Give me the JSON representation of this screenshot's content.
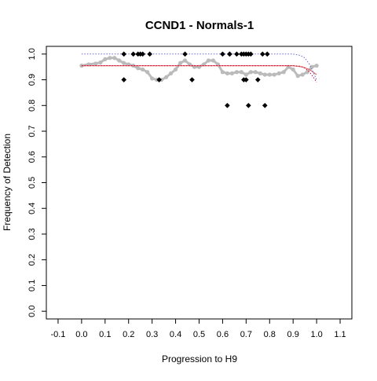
{
  "chart_data": {
    "type": "scatter",
    "title": "CCND1 - Normals-1",
    "xlabel": "Progression to H9",
    "ylabel": "Frequency of Detection",
    "xlim": [
      -0.15,
      1.15
    ],
    "ylim": [
      -0.03,
      1.03
    ],
    "x_ticks": [
      -0.1,
      0.0,
      0.1,
      0.2,
      0.3,
      0.4,
      0.5,
      0.6,
      0.7,
      0.8,
      0.9,
      1.0,
      1.1
    ],
    "x_tick_labels": [
      "-0.1",
      "0.0",
      "0.1",
      "0.2",
      "0.3",
      "0.4",
      "0.5",
      "0.6",
      "0.7",
      "0.8",
      "0.9",
      "1.0",
      "1.1"
    ],
    "y_ticks": [
      0.0,
      0.1,
      0.2,
      0.3,
      0.4,
      0.5,
      0.6,
      0.7,
      0.8,
      0.9,
      1.0
    ],
    "y_tick_labels": [
      "0.0",
      "0.1",
      "0.2",
      "0.3",
      "0.4",
      "0.5",
      "0.6",
      "0.7",
      "0.8",
      "0.9",
      "1.0"
    ],
    "grid": false,
    "colors": {
      "observed": "#000000",
      "smoothed": "#bbbbbb",
      "fit": "#e07070",
      "upper": "#6666dd",
      "lower": "#cc0033"
    },
    "series": [
      {
        "role": "observed",
        "style": "points",
        "x": [
          0.18,
          0.18,
          0.22,
          0.24,
          0.25,
          0.26,
          0.29,
          0.33,
          0.44,
          0.47,
          0.6,
          0.62,
          0.63,
          0.63,
          0.66,
          0.68,
          0.69,
          0.69,
          0.7,
          0.7,
          0.71,
          0.71,
          0.72,
          0.75,
          0.77,
          0.78,
          0.79
        ],
        "y": [
          1.0,
          0.9,
          1.0,
          1.0,
          1.0,
          1.0,
          1.0,
          0.9,
          1.0,
          0.9,
          1.0,
          0.8,
          1.0,
          1.0,
          1.0,
          1.0,
          0.9,
          1.0,
          0.9,
          1.0,
          0.8,
          1.0,
          1.0,
          0.9,
          1.0,
          0.8,
          1.0
        ]
      },
      {
        "role": "smoothed",
        "style": "dense-points",
        "x": [
          0.0,
          0.03,
          0.06,
          0.08,
          0.1,
          0.12,
          0.14,
          0.16,
          0.18,
          0.2,
          0.22,
          0.24,
          0.26,
          0.28,
          0.3,
          0.32,
          0.34,
          0.36,
          0.38,
          0.4,
          0.42,
          0.44,
          0.46,
          0.48,
          0.5,
          0.52,
          0.54,
          0.56,
          0.58,
          0.6,
          0.62,
          0.64,
          0.66,
          0.68,
          0.7,
          0.72,
          0.74,
          0.76,
          0.78,
          0.8,
          0.82,
          0.84,
          0.86,
          0.88,
          0.9,
          0.92,
          0.94,
          0.96,
          0.98,
          1.0
        ],
        "y": [
          0.955,
          0.96,
          0.963,
          0.967,
          0.98,
          0.985,
          0.985,
          0.975,
          0.965,
          0.96,
          0.955,
          0.945,
          0.94,
          0.93,
          0.905,
          0.9,
          0.9,
          0.91,
          0.925,
          0.94,
          0.965,
          0.975,
          0.96,
          0.95,
          0.95,
          0.96,
          0.975,
          0.975,
          0.96,
          0.93,
          0.925,
          0.925,
          0.93,
          0.93,
          0.92,
          0.93,
          0.93,
          0.925,
          0.92,
          0.92,
          0.92,
          0.925,
          0.93,
          0.95,
          0.94,
          0.915,
          0.92,
          0.93,
          0.95,
          0.955
        ]
      },
      {
        "role": "fit",
        "style": "line",
        "x": [
          0.0,
          0.2,
          0.4,
          0.6,
          0.8,
          0.9,
          0.94,
          0.97,
          1.0
        ],
        "y": [
          0.955,
          0.955,
          0.955,
          0.955,
          0.955,
          0.955,
          0.95,
          0.94,
          0.92
        ]
      },
      {
        "role": "upper",
        "style": "dotted",
        "x": [
          0.0,
          0.2,
          0.4,
          0.6,
          0.8,
          0.9,
          0.93,
          0.95,
          0.97,
          0.99,
          1.0
        ],
        "y": [
          1.0,
          1.0,
          1.0,
          1.0,
          1.0,
          1.0,
          0.995,
          0.985,
          0.96,
          0.92,
          0.9
        ]
      },
      {
        "role": "lower",
        "style": "dotted",
        "x": [
          0.0,
          0.2,
          0.4,
          0.6,
          0.8,
          0.9,
          0.93,
          0.95,
          0.97,
          0.99,
          1.0
        ],
        "y": [
          0.955,
          0.955,
          0.955,
          0.955,
          0.955,
          0.955,
          0.953,
          0.945,
          0.93,
          0.905,
          0.89
        ]
      }
    ]
  }
}
